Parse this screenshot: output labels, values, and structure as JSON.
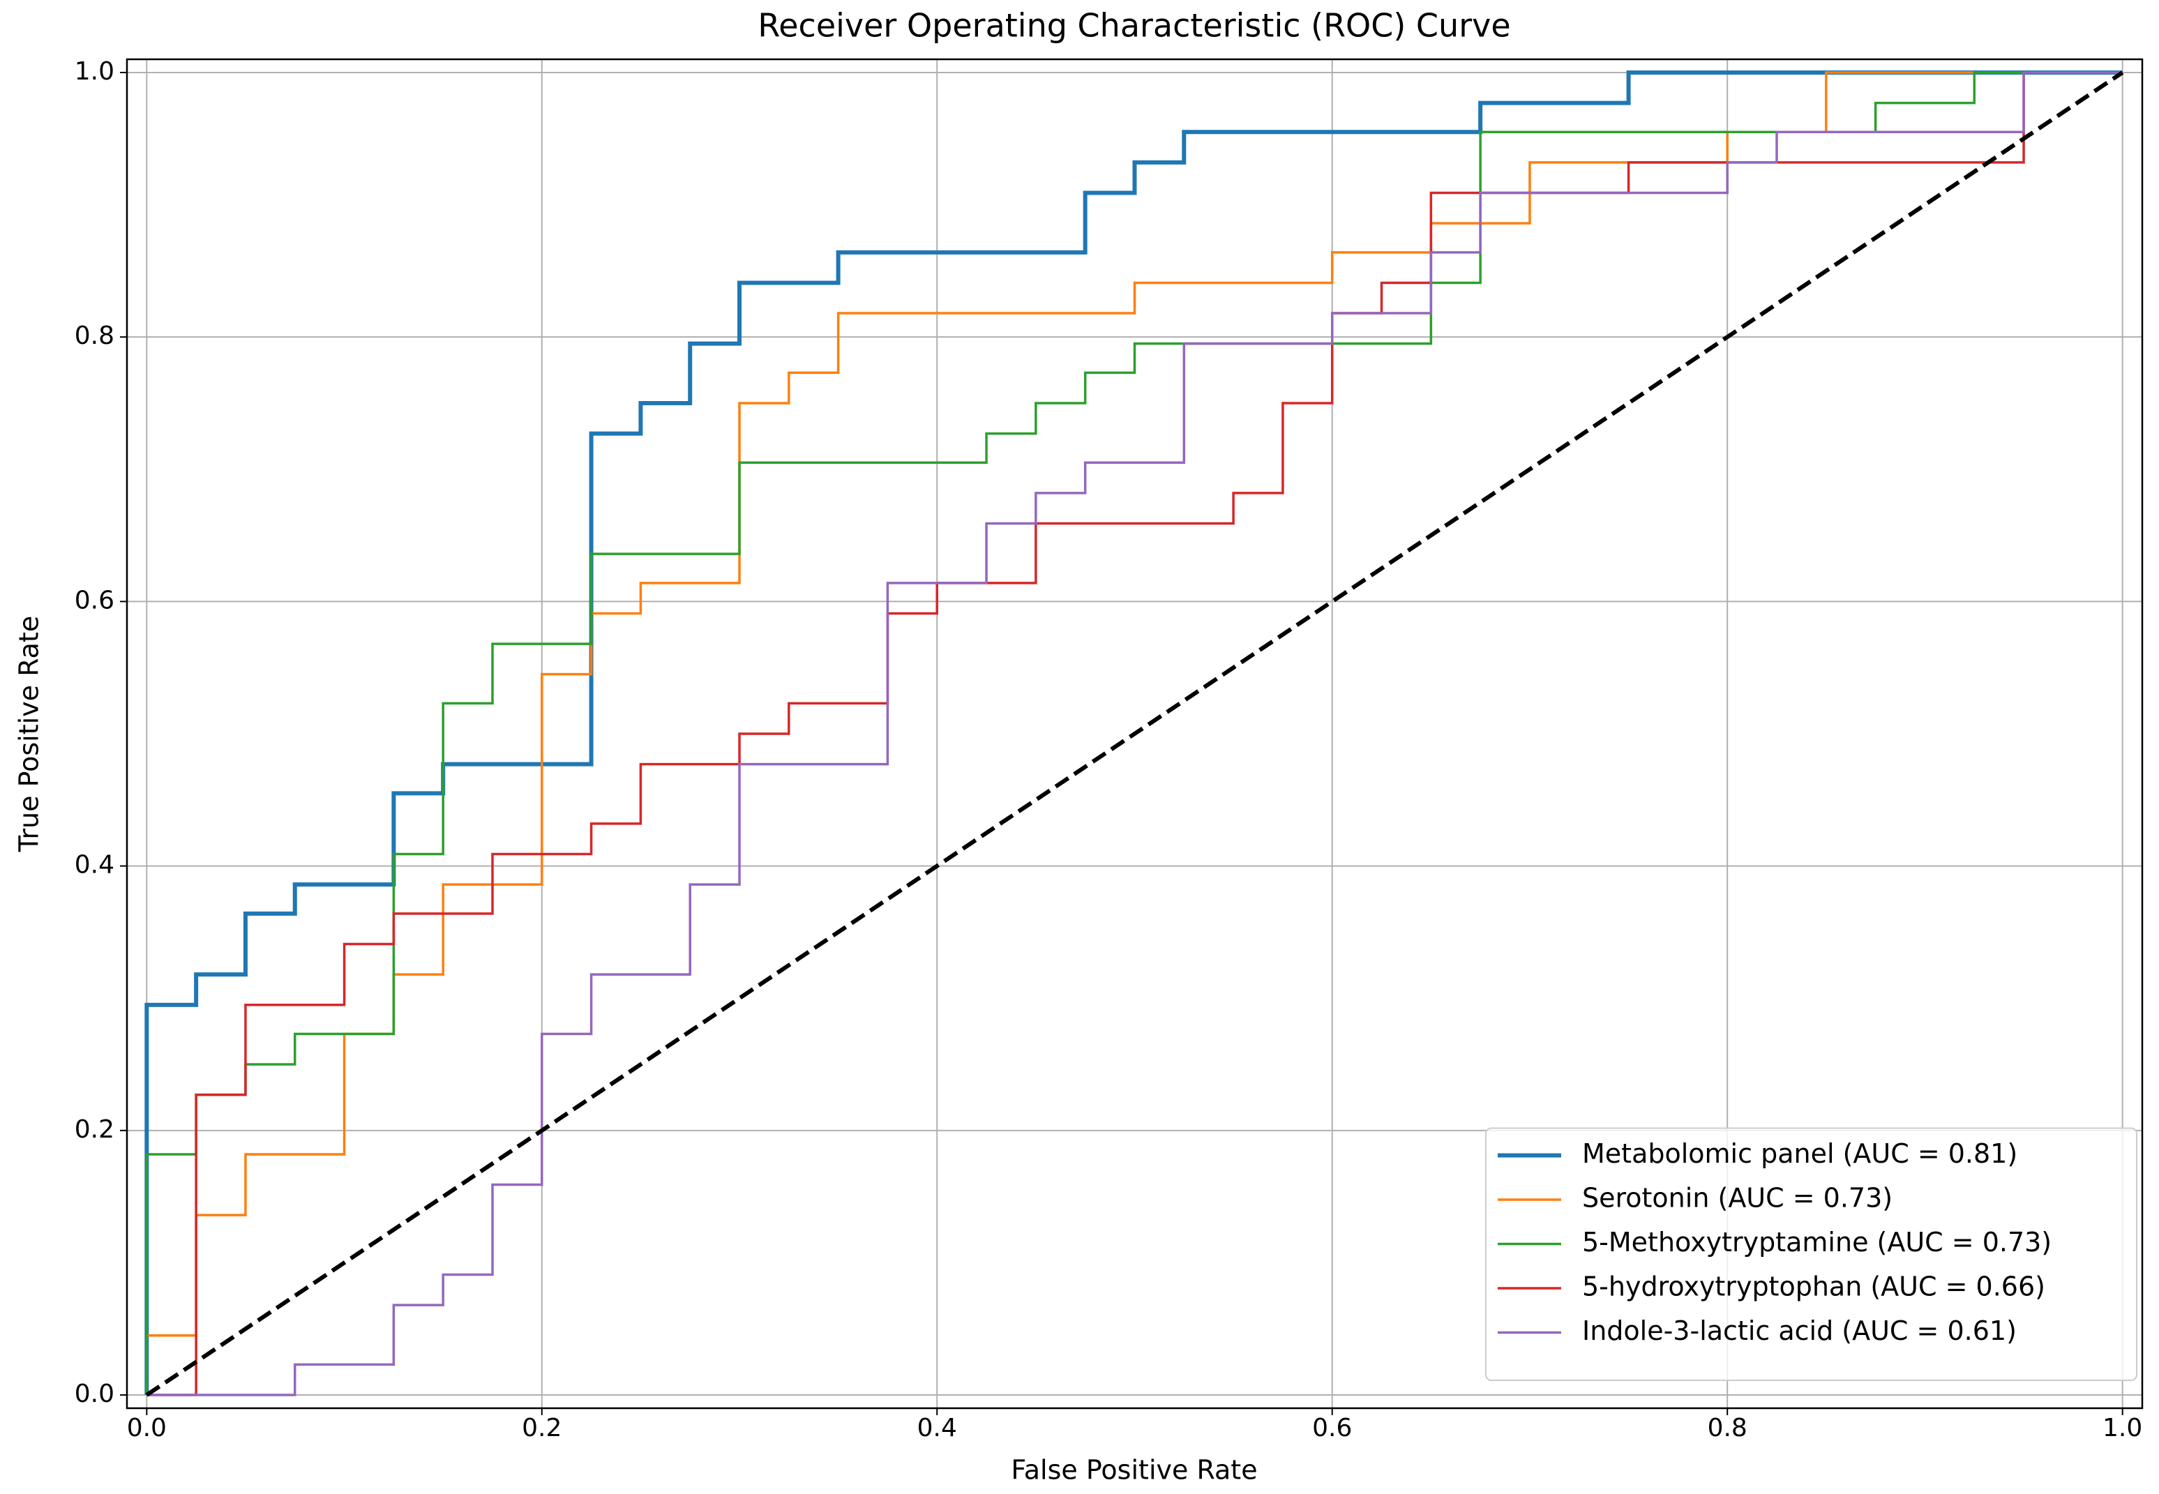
{
  "chart_data": {
    "type": "line",
    "title": "Receiver Operating Characteristic (ROC) Curve",
    "x_label": "False Positive Rate",
    "y_label": "True Positive Rate",
    "xlim": [
      -0.01,
      1.01
    ],
    "ylim": [
      -0.01,
      1.01
    ],
    "xticks": [
      {
        "value": 0,
        "label": "0.0"
      },
      0.2,
      0.4,
      0.6,
      0.8,
      {
        "value": 1,
        "label": "1.0"
      }
    ],
    "yticks": [
      {
        "value": 0,
        "label": "0.0"
      },
      0.2,
      0.4,
      0.6,
      0.8,
      {
        "value": 1,
        "label": "1.0"
      }
    ],
    "grid": true,
    "legend": "lower right",
    "reference_line": {
      "x": [
        0,
        1
      ],
      "y": [
        0,
        1
      ],
      "style": "dashed",
      "color": "#000000"
    },
    "series": [
      {
        "name": "Metabolomic panel (AUC = 0.81)",
        "color": "#1f77b4",
        "x": [
          0,
          0,
          0.025,
          0.025,
          0.05,
          0.05,
          0.075,
          0.075,
          0.125,
          0.125,
          0.15,
          0.15,
          0.225,
          0.225,
          0.25,
          0.25,
          0.275,
          0.275,
          0.3,
          0.3,
          0.35,
          0.35,
          0.475,
          0.475,
          0.5,
          0.5,
          0.525,
          0.525,
          0.675,
          0.675,
          0.75,
          0.75,
          1
        ],
        "values": [
          0,
          0.295,
          0.295,
          0.318,
          0.318,
          0.364,
          0.364,
          0.386,
          0.386,
          0.455,
          0.455,
          0.477,
          0.477,
          0.727,
          0.727,
          0.75,
          0.75,
          0.795,
          0.795,
          0.841,
          0.841,
          0.864,
          0.864,
          0.909,
          0.909,
          0.932,
          0.932,
          0.955,
          0.955,
          0.977,
          0.977,
          1,
          1
        ]
      },
      {
        "name": "Serotonin (AUC = 0.73)",
        "color": "#ff7f0e",
        "x": [
          0,
          0,
          0.025,
          0.025,
          0.05,
          0.05,
          0.1,
          0.1,
          0.125,
          0.125,
          0.15,
          0.15,
          0.2,
          0.2,
          0.225,
          0.225,
          0.25,
          0.25,
          0.3,
          0.3,
          0.325,
          0.325,
          0.35,
          0.35,
          0.5,
          0.5,
          0.6,
          0.6,
          0.65,
          0.65,
          0.7,
          0.7,
          0.8,
          0.8,
          0.85,
          0.85,
          1
        ],
        "values": [
          0,
          0.045,
          0.045,
          0.136,
          0.136,
          0.182,
          0.182,
          0.273,
          0.273,
          0.318,
          0.318,
          0.386,
          0.386,
          0.545,
          0.545,
          0.591,
          0.591,
          0.614,
          0.614,
          0.75,
          0.75,
          0.773,
          0.773,
          0.818,
          0.818,
          0.841,
          0.841,
          0.864,
          0.864,
          0.886,
          0.886,
          0.932,
          0.932,
          0.955,
          0.955,
          1,
          1
        ]
      },
      {
        "name": "5-Methoxytryptamine (AUC = 0.73)",
        "color": "#2ca02c",
        "x": [
          0,
          0,
          0.025,
          0.025,
          0.05,
          0.05,
          0.075,
          0.075,
          0.125,
          0.125,
          0.15,
          0.15,
          0.175,
          0.175,
          0.225,
          0.225,
          0.3,
          0.3,
          0.425,
          0.425,
          0.45,
          0.45,
          0.475,
          0.475,
          0.5,
          0.5,
          0.65,
          0.65,
          0.675,
          0.675,
          0.875,
          0.875,
          0.925,
          0.925,
          1
        ],
        "values": [
          0,
          0.182,
          0.182,
          0.227,
          0.227,
          0.25,
          0.25,
          0.273,
          0.273,
          0.409,
          0.409,
          0.523,
          0.523,
          0.568,
          0.568,
          0.636,
          0.636,
          0.705,
          0.705,
          0.727,
          0.727,
          0.75,
          0.75,
          0.773,
          0.773,
          0.795,
          0.795,
          0.841,
          0.841,
          0.955,
          0.955,
          0.977,
          0.977,
          1,
          1
        ]
      },
      {
        "name": "5-hydroxytryptophan (AUC = 0.66)",
        "color": "#d62728",
        "x": [
          0,
          0.025,
          0.025,
          0.05,
          0.05,
          0.1,
          0.1,
          0.125,
          0.125,
          0.175,
          0.175,
          0.225,
          0.225,
          0.25,
          0.25,
          0.3,
          0.3,
          0.325,
          0.325,
          0.375,
          0.375,
          0.4,
          0.4,
          0.45,
          0.45,
          0.55,
          0.55,
          0.575,
          0.575,
          0.6,
          0.6,
          0.625,
          0.625,
          0.65,
          0.65,
          0.75,
          0.75,
          0.95,
          0.95,
          1
        ],
        "values": [
          0,
          0,
          0.227,
          0.227,
          0.295,
          0.295,
          0.341,
          0.341,
          0.364,
          0.364,
          0.409,
          0.409,
          0.432,
          0.432,
          0.477,
          0.477,
          0.5,
          0.5,
          0.523,
          0.523,
          0.591,
          0.591,
          0.614,
          0.614,
          0.659,
          0.659,
          0.682,
          0.682,
          0.75,
          0.75,
          0.818,
          0.818,
          0.841,
          0.841,
          0.909,
          0.909,
          0.932,
          0.932,
          1,
          1
        ]
      },
      {
        "name": "Indole-3-lactic acid (AUC = 0.61)",
        "color": "#9467bd",
        "x": [
          0,
          0.075,
          0.075,
          0.125,
          0.125,
          0.15,
          0.15,
          0.175,
          0.175,
          0.2,
          0.2,
          0.225,
          0.225,
          0.275,
          0.275,
          0.3,
          0.3,
          0.375,
          0.375,
          0.425,
          0.425,
          0.45,
          0.45,
          0.475,
          0.475,
          0.525,
          0.525,
          0.6,
          0.6,
          0.65,
          0.65,
          0.675,
          0.675,
          0.8,
          0.8,
          0.825,
          0.825,
          0.95,
          0.95,
          1
        ],
        "values": [
          0,
          0,
          0.023,
          0.023,
          0.068,
          0.068,
          0.091,
          0.091,
          0.159,
          0.159,
          0.273,
          0.273,
          0.318,
          0.318,
          0.386,
          0.386,
          0.477,
          0.477,
          0.614,
          0.614,
          0.659,
          0.659,
          0.682,
          0.682,
          0.705,
          0.705,
          0.795,
          0.795,
          0.818,
          0.818,
          0.864,
          0.864,
          0.909,
          0.909,
          0.932,
          0.932,
          0.955,
          0.955,
          1,
          1
        ]
      }
    ]
  }
}
